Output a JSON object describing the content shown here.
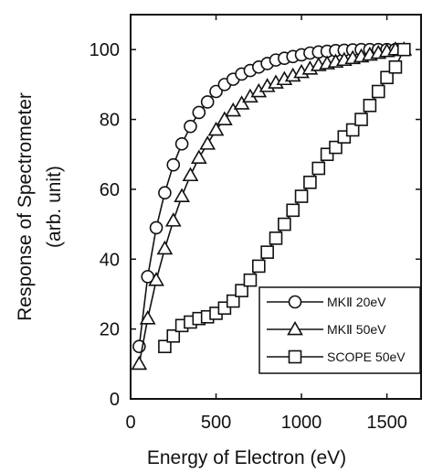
{
  "chart_data": {
    "type": "line",
    "title": "",
    "xlabel": "Energy of Electron (eV)",
    "ylabel_line1": "Response of Spectrometer",
    "ylabel_line2": "(arb. unit)",
    "xlim": [
      0,
      1700
    ],
    "ylim": [
      0,
      110
    ],
    "xticks": [
      0,
      500,
      1000,
      1500
    ],
    "yticks": [
      0,
      20,
      40,
      60,
      80,
      100
    ],
    "grid": false,
    "legend_position": "bottom-right",
    "series": [
      {
        "name": "MKⅡ 20eV",
        "marker": "circle",
        "x": [
          50,
          100,
          150,
          200,
          250,
          300,
          350,
          400,
          450,
          500,
          550,
          600,
          650,
          700,
          750,
          800,
          850,
          900,
          950,
          1000,
          1050,
          1100,
          1150,
          1200,
          1250,
          1300,
          1350,
          1400,
          1450,
          1500,
          1550,
          1600
        ],
        "y": [
          15,
          35,
          49,
          59,
          67,
          73,
          78,
          82,
          85,
          88,
          90,
          91.5,
          93,
          94,
          95,
          96,
          97,
          97.5,
          98,
          98.5,
          99,
          99.3,
          99.5,
          99.7,
          99.8,
          99.9,
          100,
          100,
          100,
          100,
          100,
          100
        ]
      },
      {
        "name": "MKⅡ 50eV",
        "marker": "triangle",
        "x": [
          50,
          100,
          150,
          200,
          250,
          300,
          350,
          400,
          450,
          500,
          550,
          600,
          650,
          700,
          750,
          800,
          850,
          900,
          950,
          1000,
          1050,
          1100,
          1150,
          1200,
          1250,
          1300,
          1350,
          1400,
          1450,
          1500,
          1550,
          1600
        ],
        "y": [
          10,
          23,
          34,
          43,
          51,
          58,
          64,
          69,
          73,
          77,
          80,
          82.5,
          84.5,
          86.5,
          88,
          89.5,
          90.5,
          91.5,
          92.5,
          93.5,
          94.5,
          95.5,
          96,
          96.5,
          97,
          97.5,
          98,
          98.5,
          99,
          99.5,
          100,
          100
        ]
      },
      {
        "name": "SCOPE 50eV",
        "marker": "square",
        "x": [
          200,
          250,
          300,
          350,
          400,
          450,
          500,
          550,
          600,
          650,
          700,
          750,
          800,
          850,
          900,
          950,
          1000,
          1050,
          1100,
          1150,
          1200,
          1250,
          1300,
          1350,
          1400,
          1450,
          1500,
          1550,
          1600
        ],
        "y": [
          15,
          18,
          21,
          22,
          23,
          23.5,
          24.5,
          26,
          28,
          31,
          34,
          38,
          42,
          46,
          50,
          54,
          58,
          62,
          66,
          70,
          72,
          75,
          77,
          80,
          84,
          88,
          92,
          95,
          100
        ]
      }
    ]
  }
}
